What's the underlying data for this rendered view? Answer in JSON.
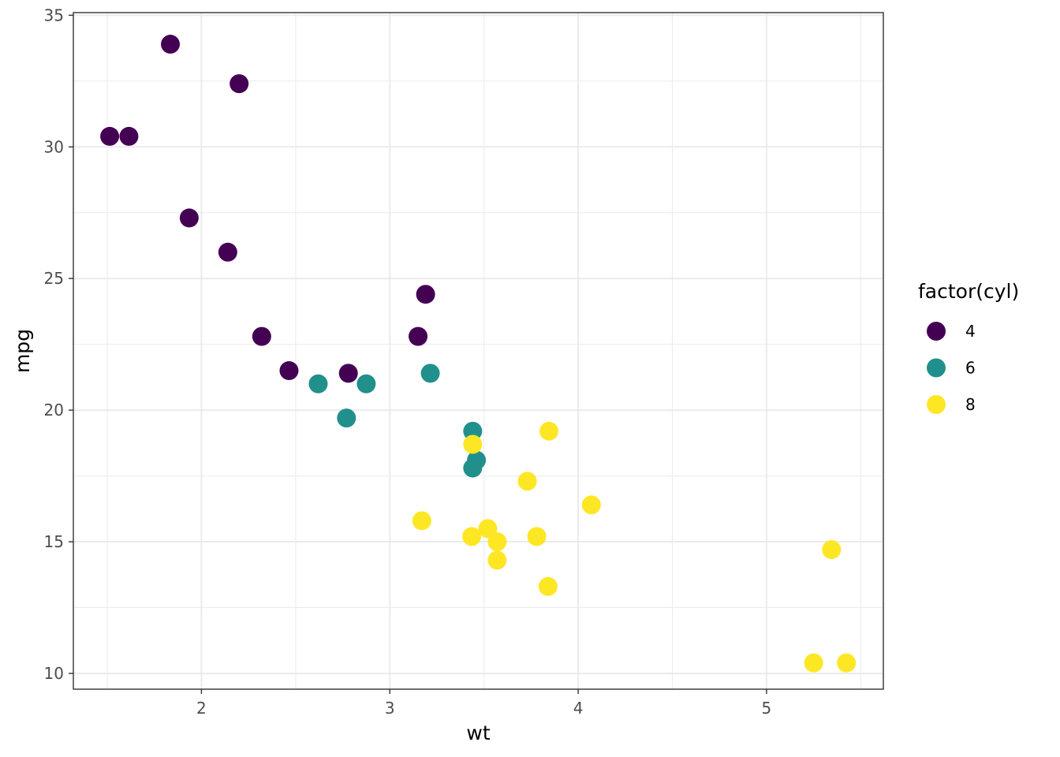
{
  "chart_data": {
    "type": "scatter",
    "xlabel": "wt",
    "ylabel": "mpg",
    "xlim": [
      1.32,
      5.62
    ],
    "ylim": [
      9.4,
      35.1
    ],
    "x_ticks": [
      2,
      3,
      4,
      5
    ],
    "y_ticks": [
      10,
      15,
      20,
      25,
      30,
      35
    ],
    "x_minor": [
      1.5,
      2.5,
      3.5,
      4.5,
      5.5
    ],
    "y_minor": [
      12.5,
      17.5,
      22.5,
      27.5,
      32.5
    ],
    "grid": true,
    "legend": {
      "title": "factor(cyl)",
      "position": "right",
      "entries": [
        {
          "label": "4",
          "color": "#440154"
        },
        {
          "label": "6",
          "color": "#21908C"
        },
        {
          "label": "8",
          "color": "#FDE725"
        }
      ]
    },
    "series": [
      {
        "name": "4",
        "color": "#440154",
        "points": [
          [
            2.32,
            22.8
          ],
          [
            3.19,
            24.4
          ],
          [
            3.15,
            22.8
          ],
          [
            2.2,
            32.4
          ],
          [
            1.615,
            30.4
          ],
          [
            1.835,
            33.9
          ],
          [
            2.465,
            21.5
          ],
          [
            1.935,
            27.3
          ],
          [
            2.14,
            26.0
          ],
          [
            1.513,
            30.4
          ],
          [
            2.78,
            21.4
          ]
        ]
      },
      {
        "name": "6",
        "color": "#21908C",
        "points": [
          [
            2.62,
            21.0
          ],
          [
            2.875,
            21.0
          ],
          [
            3.215,
            21.4
          ],
          [
            3.46,
            18.1
          ],
          [
            3.44,
            19.2
          ],
          [
            3.44,
            17.8
          ],
          [
            2.77,
            19.7
          ]
        ]
      },
      {
        "name": "8",
        "color": "#FDE725",
        "points": [
          [
            3.44,
            18.7
          ],
          [
            3.57,
            14.3
          ],
          [
            4.07,
            16.4
          ],
          [
            3.73,
            17.3
          ],
          [
            3.78,
            15.2
          ],
          [
            5.25,
            10.4
          ],
          [
            5.424,
            10.4
          ],
          [
            5.345,
            14.7
          ],
          [
            3.52,
            15.5
          ],
          [
            3.435,
            15.2
          ],
          [
            3.84,
            13.3
          ],
          [
            3.845,
            19.2
          ],
          [
            3.17,
            15.8
          ],
          [
            3.57,
            15.0
          ]
        ]
      }
    ]
  }
}
